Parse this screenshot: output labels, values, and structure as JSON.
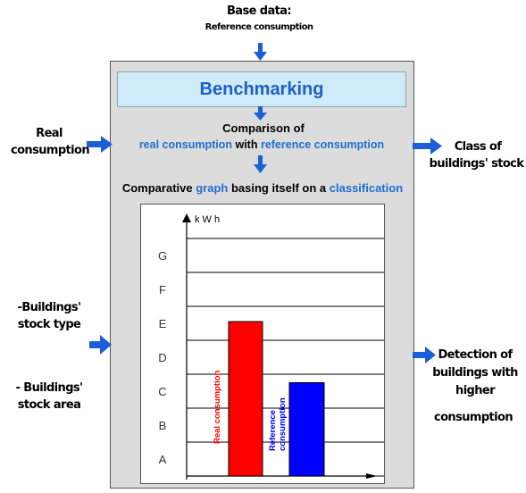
{
  "base_data": {
    "title": "Base data:",
    "subtitle": "Reference consumption"
  },
  "benchmarking_title": "Benchmarking",
  "comparison": {
    "line1": "Comparison of",
    "part_real": "real consumption",
    "part_with": " with ",
    "part_ref": "reference consumption"
  },
  "graph_line": {
    "part1": "Comparative ",
    "part_graph": "graph",
    "part2": " basing itself on a ",
    "part_class": "classification"
  },
  "left_labels": {
    "real_1": "Real",
    "real_2": "consumption",
    "type_1": "-Buildings'",
    "type_2": "stock type",
    "area_1": "- Buildings'",
    "area_2": "stock area"
  },
  "right_labels": {
    "class_1": "Class of",
    "class_2": "buildings' stock",
    "detect_1": "Detection of",
    "detect_2": "buildings with",
    "detect_3": "higher",
    "detect_4": "consumption"
  },
  "colors": {
    "accent_blue": "#1f6fd0",
    "arrow_blue": "#1a5fd6",
    "real_bar": "#ff0000",
    "reference_bar": "#0000ff"
  },
  "chart_data": {
    "type": "bar",
    "y_unit_label": "k W  h",
    "classes": [
      "A",
      "B",
      "C",
      "D",
      "E",
      "F",
      "G"
    ],
    "bars": [
      {
        "label": "Real consumption",
        "value": 4.55,
        "color": "#ff0000"
      },
      {
        "label": "Reference consumption",
        "value": 2.75,
        "color": "#0000ff"
      }
    ],
    "ylim": [
      0,
      7
    ],
    "grid": true
  }
}
